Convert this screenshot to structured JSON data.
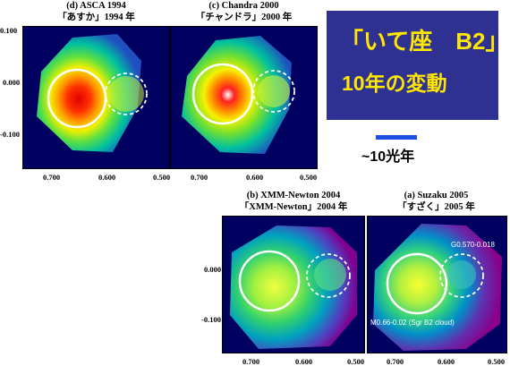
{
  "title": {
    "line1": "「いて座　B2」",
    "line2": "10年の変動"
  },
  "scale": {
    "label": "~10光年",
    "bar_color": "#1a4fe0"
  },
  "panels": [
    {
      "id": "asca",
      "caption_en": "(d) ASCA 1994",
      "caption_jp": "「あすか」1994 年",
      "y_ticks": [
        "0.100",
        "0.000",
        "-0.100"
      ],
      "x_ticks": [
        "0.700",
        "0.600",
        "0.500"
      ]
    },
    {
      "id": "chandra",
      "caption_en": "(c) Chandra 2000",
      "caption_jp": "「チャンドラ」2000 年",
      "x_ticks": [
        "0.700",
        "0.600",
        "0.500"
      ]
    },
    {
      "id": "xmm",
      "caption_en": "(b) XMM-Newton 2004",
      "caption_jp": "「XMM-Newton」2004 年",
      "y_ticks": [
        "0.000",
        "-0.100"
      ],
      "x_ticks": [
        "0.700",
        "0.600",
        "0.500"
      ]
    },
    {
      "id": "suzaku",
      "caption_en": "(a) Suzaku 2005",
      "caption_jp": "「すざく」2005 年",
      "x_ticks": [
        "0.700",
        "0.600",
        "0.500"
      ],
      "labels": {
        "g": "G0.570-0.018",
        "m": "M0.66-0.02 (Sgr B2 cloud)"
      }
    }
  ],
  "colors": {
    "title_bg": "#2e3192",
    "title_text": "#ffe600",
    "panel_bg": "#000060"
  }
}
